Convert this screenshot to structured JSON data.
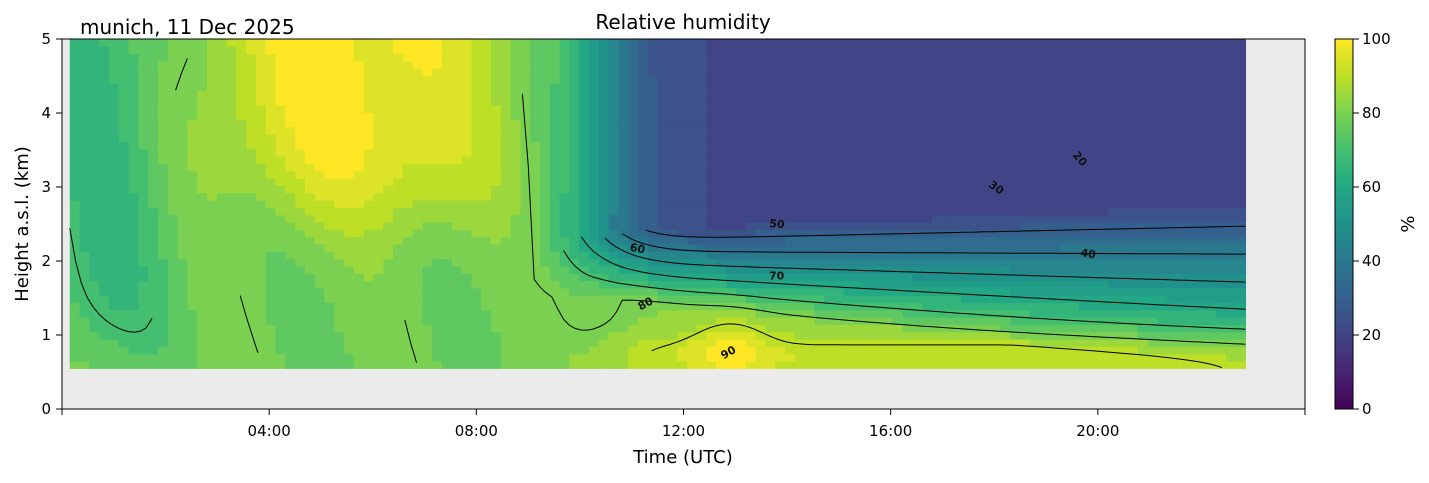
{
  "chart_data": {
    "type": "heatmap",
    "title": "Relative humidity",
    "subtitle": "munich, 11 Dec 2025",
    "xlabel": "Time (UTC)",
    "ylabel": "Height a.s.l. (km)",
    "colorbar_label": "%",
    "xlim": [
      0,
      24
    ],
    "ylim": [
      0,
      5
    ],
    "x_data_extent": [
      0.15,
      22.85
    ],
    "y_data_extent": [
      0.55,
      5.0
    ],
    "x_ticks": [
      {
        "value": 0,
        "label": ""
      },
      {
        "value": 4,
        "label": "04:00"
      },
      {
        "value": 8,
        "label": "08:00"
      },
      {
        "value": 12,
        "label": "12:00"
      },
      {
        "value": 16,
        "label": "16:00"
      },
      {
        "value": 20,
        "label": "20:00"
      },
      {
        "value": 24,
        "label": ""
      }
    ],
    "y_ticks": [
      {
        "value": 0,
        "label": "0"
      },
      {
        "value": 1,
        "label": "1"
      },
      {
        "value": 2,
        "label": "2"
      },
      {
        "value": 3,
        "label": "3"
      },
      {
        "value": 4,
        "label": "4"
      },
      {
        "value": 5,
        "label": "5"
      }
    ],
    "colorbar": {
      "min": 0,
      "max": 100,
      "colormap": "viridis",
      "ticks": [
        {
          "value": 0,
          "label": "0"
        },
        {
          "value": 20,
          "label": "20"
        },
        {
          "value": 40,
          "label": "40"
        },
        {
          "value": 60,
          "label": "60"
        },
        {
          "value": 80,
          "label": "80"
        },
        {
          "value": 100,
          "label": "100"
        }
      ]
    },
    "contour_levels": [
      20,
      30,
      40,
      50,
      60,
      70,
      80,
      90
    ],
    "contour_labels": [
      {
        "text": "20",
        "x": 19.6,
        "y": 3.35,
        "rotation": 50
      },
      {
        "text": "30",
        "x": 18.0,
        "y": 2.95,
        "rotation": 35
      },
      {
        "text": "40",
        "x": 19.8,
        "y": 2.05,
        "rotation": 10
      },
      {
        "text": "50",
        "x": 13.8,
        "y": 2.45,
        "rotation": 5
      },
      {
        "text": "60",
        "x": 11.1,
        "y": 2.12,
        "rotation": 10
      },
      {
        "text": "70",
        "x": 13.8,
        "y": 1.75,
        "rotation": 0
      },
      {
        "text": "80",
        "x": 11.3,
        "y": 1.38,
        "rotation": -28
      },
      {
        "text": "90",
        "x": 12.9,
        "y": 0.72,
        "rotation": -30
      }
    ],
    "grid": false,
    "background_color": "#ebebeb",
    "field_description_values": {
      "upper_morning_max": 98,
      "evening_upper_min": 15,
      "lower_layer_typical": 80
    }
  }
}
